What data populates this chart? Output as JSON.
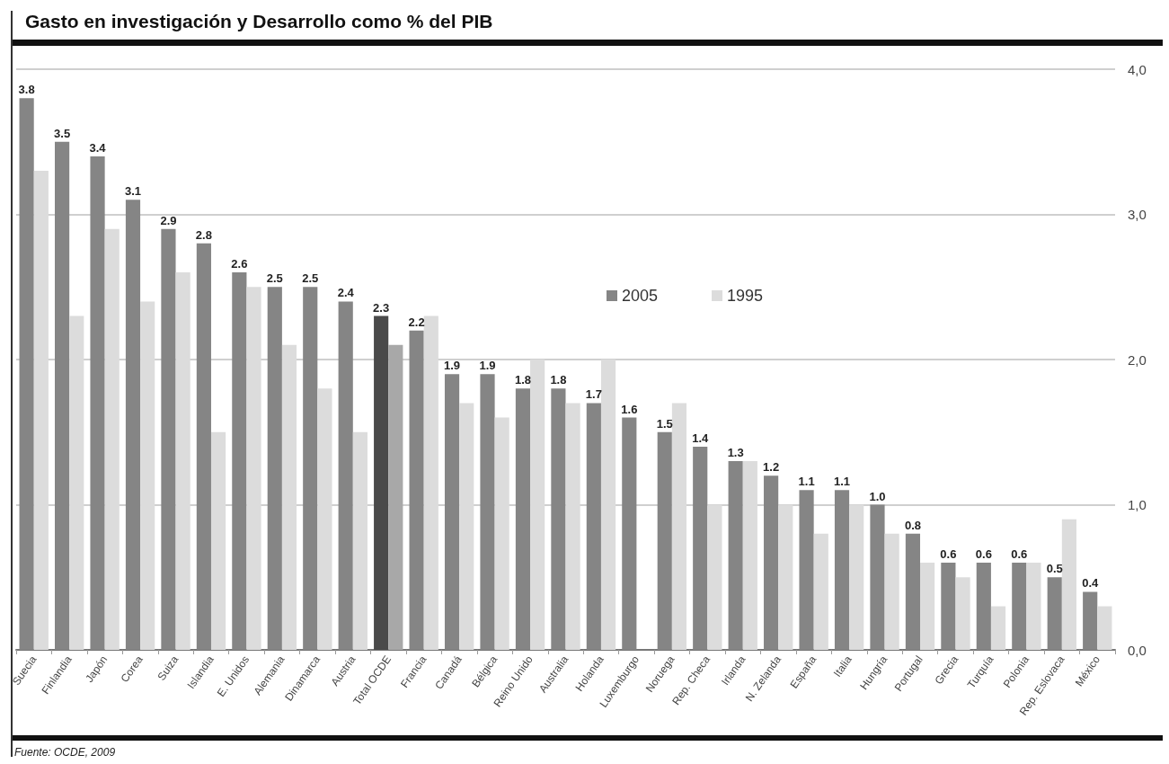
{
  "chart_data": {
    "type": "bar",
    "title": "Gasto en investigación y Desarrollo como % del PIB",
    "categories": [
      "Suecia",
      "Finlandia",
      "Japón",
      "Corea",
      "Suiza",
      "Islandia",
      "E. Unidos",
      "Alemania",
      "Dinamarca",
      "Austria",
      "Total OCDE",
      "Francia",
      "Canadá",
      "Bélgica",
      "Reino Unido",
      "Australia",
      "Holanda",
      "Luxemburgo",
      "Noruega",
      "Rep. Checa",
      "Irlanda",
      "N. Zelanda",
      "España",
      "Italia",
      "Hungría",
      "Portugal",
      "Grecia",
      "Turquía",
      "Polonia",
      "Rep. Eslovaca",
      "México"
    ],
    "series": [
      {
        "name": "2005",
        "color": "#858585",
        "colors": [
          "#858585",
          "#858585",
          "#858585",
          "#858585",
          "#858585",
          "#858585",
          "#858585",
          "#858585",
          "#858585",
          "#858585",
          "#4a4a4a",
          "#858585",
          "#858585",
          "#858585",
          "#858585",
          "#858585",
          "#858585",
          "#858585",
          "#858585",
          "#858585",
          "#858585",
          "#858585",
          "#858585",
          "#858585",
          "#858585",
          "#858585",
          "#858585",
          "#858585",
          "#858585",
          "#858585",
          "#858585"
        ],
        "values": [
          3.8,
          3.5,
          3.4,
          3.1,
          2.9,
          2.8,
          2.6,
          2.5,
          2.5,
          2.4,
          2.3,
          2.2,
          1.9,
          1.9,
          1.8,
          1.8,
          1.7,
          1.6,
          1.5,
          1.4,
          1.3,
          1.2,
          1.1,
          1.1,
          1.0,
          0.8,
          0.6,
          0.6,
          0.6,
          0.5,
          0.4
        ],
        "value_labels": [
          "3.8",
          "3.5",
          "3.4",
          "3.1",
          "2.9",
          "2.8",
          "2.6",
          "2.5",
          "2.5",
          "2.4",
          "2.3",
          "2.2",
          "1.9",
          "1.9",
          "1.8",
          "1.8",
          "1.7",
          "1.6",
          "1.5",
          "1.4",
          "1.3",
          "1.2",
          "1.1",
          "1.1",
          "1.0",
          "0.8",
          "0.6",
          "0.6",
          "0.6",
          "0.5",
          "0.4"
        ]
      },
      {
        "name": "1995",
        "color": "#dcdcdc",
        "colors": [
          "#dcdcdc",
          "#dcdcdc",
          "#dcdcdc",
          "#dcdcdc",
          "#dcdcdc",
          "#dcdcdc",
          "#dcdcdc",
          "#dcdcdc",
          "#dcdcdc",
          "#dcdcdc",
          "#a8a8a8",
          "#dcdcdc",
          "#dcdcdc",
          "#dcdcdc",
          "#dcdcdc",
          "#dcdcdc",
          "#dcdcdc",
          "#dcdcdc",
          "#dcdcdc",
          "#dcdcdc",
          "#dcdcdc",
          "#dcdcdc",
          "#dcdcdc",
          "#dcdcdc",
          "#dcdcdc",
          "#dcdcdc",
          "#dcdcdc",
          "#dcdcdc",
          "#dcdcdc",
          "#dcdcdc",
          "#dcdcdc"
        ],
        "values": [
          3.3,
          2.3,
          2.9,
          2.4,
          2.6,
          1.5,
          2.5,
          2.1,
          1.8,
          1.5,
          2.1,
          2.3,
          1.7,
          1.6,
          2.0,
          1.7,
          2.0,
          null,
          1.7,
          1.0,
          1.3,
          1.0,
          0.8,
          1.0,
          0.8,
          0.6,
          0.5,
          0.3,
          0.6,
          0.9,
          0.3
        ]
      }
    ],
    "ylim": [
      0,
      4
    ],
    "yticks": [
      {
        "value": 0,
        "label": "0,0"
      },
      {
        "value": 1,
        "label": "1,0"
      },
      {
        "value": 2,
        "label": "2,0"
      },
      {
        "value": 3,
        "label": "3,0"
      },
      {
        "value": 4,
        "label": "4,0"
      }
    ],
    "grid": "y",
    "legend": "top",
    "annotations": [
      "Fuente: OCDE, 2009"
    ]
  }
}
